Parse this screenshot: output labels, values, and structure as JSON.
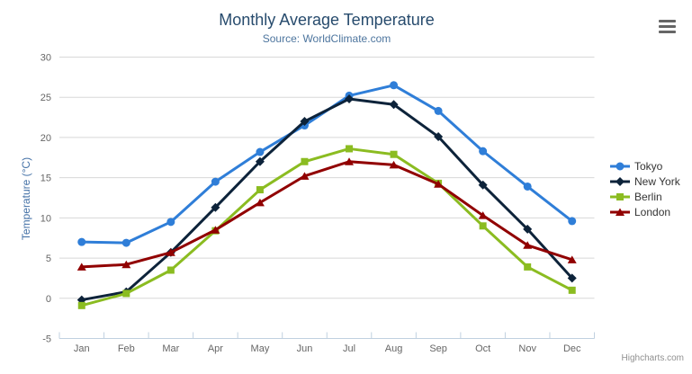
{
  "chart_data": {
    "type": "line",
    "title": "Monthly Average Temperature",
    "subtitle": "Source: WorldClimate.com",
    "xlabel": "",
    "ylabel": "Temperature (°C)",
    "categories": [
      "Jan",
      "Feb",
      "Mar",
      "Apr",
      "May",
      "Jun",
      "Jul",
      "Aug",
      "Sep",
      "Oct",
      "Nov",
      "Dec"
    ],
    "ylim": [
      -5,
      30
    ],
    "ytick_interval": 5,
    "grid": true,
    "legend_position": "right",
    "series": [
      {
        "name": "Tokyo",
        "color": "#2f7ed8",
        "marker": "circle",
        "values": [
          7.0,
          6.9,
          9.5,
          14.5,
          18.2,
          21.5,
          25.2,
          26.5,
          23.3,
          18.3,
          13.9,
          9.6
        ]
      },
      {
        "name": "New York",
        "color": "#0d233a",
        "marker": "diamond",
        "values": [
          -0.2,
          0.8,
          5.7,
          11.3,
          17.0,
          22.0,
          24.8,
          24.1,
          20.1,
          14.1,
          8.6,
          2.5
        ]
      },
      {
        "name": "Berlin",
        "color": "#8bbc21",
        "marker": "square",
        "values": [
          -0.9,
          0.6,
          3.5,
          8.4,
          13.5,
          17.0,
          18.6,
          17.9,
          14.3,
          9.0,
          3.9,
          1.0
        ]
      },
      {
        "name": "London",
        "color": "#910000",
        "marker": "triangle",
        "values": [
          3.9,
          4.2,
          5.7,
          8.5,
          11.9,
          15.2,
          17.0,
          16.6,
          14.2,
          10.3,
          6.6,
          4.8
        ]
      }
    ],
    "colors": {
      "grid": "#d8d8d8",
      "axis_line": "#c0d0e0",
      "tick": "#c0d0e0",
      "axis_label": "#666666",
      "title": "#274b6d",
      "subtitle": "#4d759e",
      "yaxis_title": "#4572a7",
      "legend_text": "#333333",
      "credits_text": "#909090",
      "menu_icon": "#666666"
    },
    "credits": "Highcharts.com"
  }
}
